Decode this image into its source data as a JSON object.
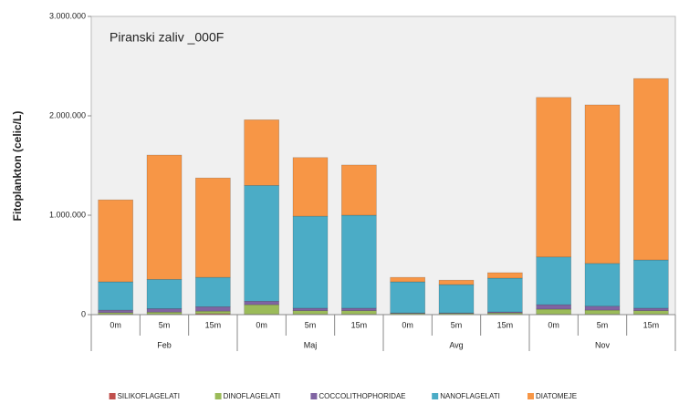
{
  "chart_data": {
    "type": "stacked-bar",
    "title": "Piranski zaliv _000F",
    "y_label": "Fitoplankton (celic/L)",
    "groups": [
      {
        "label": "Feb",
        "categories": [
          "0m",
          "5m",
          "15m"
        ]
      },
      {
        "label": "Maj",
        "categories": [
          "0m",
          "5m",
          "15m"
        ]
      },
      {
        "label": "Avg",
        "categories": [
          "0m",
          "5m",
          "15m"
        ]
      },
      {
        "label": "Nov",
        "categories": [
          "0m",
          "5m",
          "15m"
        ]
      }
    ],
    "series": [
      {
        "name": "SILIKOFLAGELATI",
        "color": "#c0504d",
        "values": [
          5000,
          5000,
          10000,
          5000,
          5000,
          5000,
          2000,
          2000,
          2000,
          5000,
          5000,
          5000
        ]
      },
      {
        "name": "DINOFLAGELATI",
        "color": "#9bbb59",
        "values": [
          15000,
          20000,
          25000,
          95000,
          35000,
          35000,
          10000,
          10000,
          15000,
          50000,
          40000,
          35000
        ]
      },
      {
        "name": "COCCOLITHOPHORIDAE",
        "color": "#8064a2",
        "values": [
          25000,
          35000,
          45000,
          35000,
          25000,
          25000,
          5000,
          5000,
          10000,
          45000,
          40000,
          25000
        ]
      },
      {
        "name": "NANOFLAGELATI",
        "color": "#4bacc6",
        "values": [
          285000,
          295000,
          295000,
          1165000,
          925000,
          935000,
          313000,
          285000,
          340000,
          480000,
          430000,
          485000
        ]
      },
      {
        "name": "DIATOMEJE",
        "color": "#f79646",
        "values": [
          825000,
          1250000,
          1000000,
          660000,
          590000,
          505000,
          45000,
          45000,
          55000,
          1605000,
          1595000,
          1825000
        ]
      }
    ],
    "ylim": [
      0,
      3000000
    ],
    "yticks": [
      0,
      {
        "value": 1000000,
        "label": "1.000.000"
      },
      {
        "value": 2000000,
        "label": "2.000.000"
      },
      {
        "value": 3000000,
        "label": "3.000.000"
      }
    ],
    "grid": false,
    "legend": "bottom"
  }
}
